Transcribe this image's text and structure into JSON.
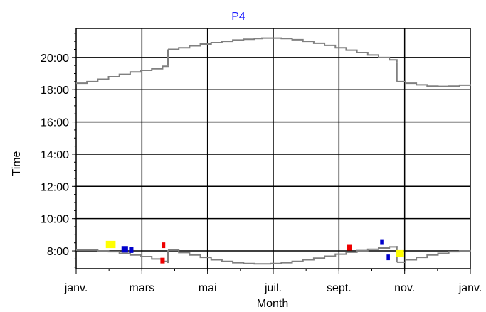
{
  "chart_data": {
    "type": "line",
    "title": "P4",
    "title_color": "#1a1aff",
    "xlabel": "Month",
    "ylabel": "Time",
    "x_ticks": [
      "janv.",
      "mars",
      "mai",
      "juil.",
      "sept.",
      "nov.",
      "janv."
    ],
    "y_ticks": [
      "8:00",
      "10:00",
      "12:00",
      "14:00",
      "16:00",
      "18:00",
      "20:00"
    ],
    "xlim": [
      0,
      365
    ],
    "ylim_hours": [
      6.9,
      21.8
    ],
    "grid": true,
    "line_color": "#808080",
    "series": [
      {
        "values_x_day": [
          0,
          10,
          20,
          30,
          40,
          50,
          60,
          70,
          80,
          85
        ],
        "values_y_hours": [
          18.4,
          18.5,
          18.65,
          18.8,
          18.95,
          19.1,
          19.2,
          19.3,
          19.45,
          19.5
        ],
        "kind": "step"
      },
      {
        "values_x_day": [
          85,
          95,
          105,
          115,
          125,
          135,
          145,
          155,
          165,
          172,
          180,
          190,
          200,
          210,
          220,
          230,
          240,
          250,
          260,
          270,
          280,
          290,
          297
        ],
        "values_y_hours": [
          20.5,
          20.6,
          20.72,
          20.83,
          20.92,
          21.0,
          21.08,
          21.13,
          21.17,
          21.2,
          21.2,
          21.17,
          21.1,
          21.0,
          20.88,
          20.75,
          20.6,
          20.45,
          20.3,
          20.15,
          20.0,
          19.85,
          19.7
        ],
        "kind": "step"
      },
      {
        "values_x_day": [
          297,
          305,
          315,
          325,
          335,
          345,
          355,
          365
        ],
        "values_y_hours": [
          18.5,
          18.4,
          18.3,
          18.22,
          18.2,
          18.22,
          18.28,
          18.35
        ],
        "kind": "step"
      },
      {
        "values_x_day": [
          0,
          10,
          20,
          30,
          40,
          50,
          60,
          70,
          80,
          85
        ],
        "values_y_hours": [
          8.05,
          8.05,
          8.0,
          7.95,
          7.85,
          7.75,
          7.65,
          7.5,
          7.35,
          7.25
        ],
        "kind": "step"
      },
      {
        "values_x_day": [
          85,
          95,
          105,
          115,
          125,
          135,
          145,
          155,
          165,
          172,
          180,
          190,
          200,
          210,
          220,
          230,
          240,
          250,
          260,
          270,
          280,
          290,
          297
        ],
        "values_y_hours": [
          8.05,
          7.9,
          7.75,
          7.6,
          7.45,
          7.35,
          7.27,
          7.22,
          7.2,
          7.2,
          7.22,
          7.27,
          7.35,
          7.45,
          7.55,
          7.67,
          7.8,
          7.92,
          8.02,
          8.1,
          8.18,
          8.25,
          8.3
        ],
        "kind": "step"
      },
      {
        "values_x_day": [
          297,
          305,
          315,
          325,
          335,
          345,
          355,
          365
        ],
        "values_y_hours": [
          7.3,
          7.45,
          7.6,
          7.75,
          7.85,
          7.95,
          8.0,
          8.05
        ],
        "kind": "step"
      }
    ],
    "markers": [
      {
        "x_day": 32,
        "y_hours": 8.4,
        "color": "#ffff00",
        "w_days": 9,
        "h_hours": 0.45
      },
      {
        "x_day": 45,
        "y_hours": 8.1,
        "color": "#0000cc",
        "w_days": 6,
        "h_hours": 0.4
      },
      {
        "x_day": 51,
        "y_hours": 8.05,
        "color": "#0000cc",
        "w_days": 4,
        "h_hours": 0.35
      },
      {
        "x_day": 80,
        "y_hours": 7.4,
        "color": "#ee0000",
        "w_days": 4,
        "h_hours": 0.35
      },
      {
        "x_day": 81,
        "y_hours": 8.35,
        "color": "#ee0000",
        "w_days": 3,
        "h_hours": 0.35
      },
      {
        "x_day": 253,
        "y_hours": 8.2,
        "color": "#ee0000",
        "w_days": 5,
        "h_hours": 0.35
      },
      {
        "x_day": 283,
        "y_hours": 8.55,
        "color": "#0000cc",
        "w_days": 3,
        "h_hours": 0.35
      },
      {
        "x_day": 289,
        "y_hours": 7.6,
        "color": "#0000cc",
        "w_days": 3,
        "h_hours": 0.35
      },
      {
        "x_day": 300,
        "y_hours": 7.85,
        "color": "#ffff00",
        "w_days": 7,
        "h_hours": 0.4
      }
    ]
  }
}
